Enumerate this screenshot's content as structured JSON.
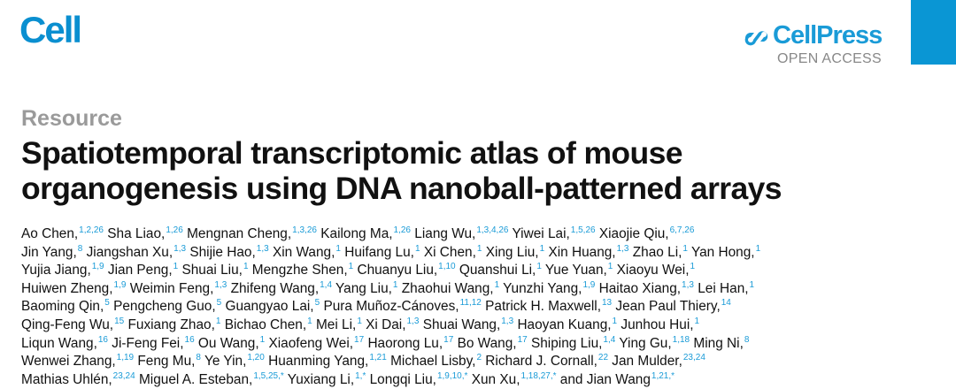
{
  "journal": "Cell",
  "publisher": {
    "name": "CellPress",
    "access": "OPEN ACCESS"
  },
  "colors": {
    "brand": "#1a9bd7",
    "block": "#0a96d4",
    "section": "#9a9a9a"
  },
  "article_type": "Resource",
  "title_lines": [
    "Spatiotemporal transcriptomic atlas of mouse",
    "organogenesis using DNA nanoball-patterned arrays"
  ],
  "author_lines": [
    [
      {
        "name": "Ao Chen,",
        "sup": "1,2,26"
      },
      {
        "name": "Sha Liao,",
        "sup": "1,26"
      },
      {
        "name": "Mengnan Cheng,",
        "sup": "1,3,26"
      },
      {
        "name": "Kailong Ma,",
        "sup": "1,26"
      },
      {
        "name": "Liang Wu,",
        "sup": "1,3,4,26"
      },
      {
        "name": "Yiwei Lai,",
        "sup": "1,5,26"
      },
      {
        "name": "Xiaojie Qiu,",
        "sup": "6,7,26"
      }
    ],
    [
      {
        "name": "Jin Yang,",
        "sup": "8"
      },
      {
        "name": "Jiangshan Xu,",
        "sup": "1,3"
      },
      {
        "name": "Shijie Hao,",
        "sup": "1,3"
      },
      {
        "name": "Xin Wang,",
        "sup": "1"
      },
      {
        "name": "Huifang Lu,",
        "sup": "1"
      },
      {
        "name": "Xi Chen,",
        "sup": "1"
      },
      {
        "name": "Xing Liu,",
        "sup": "1"
      },
      {
        "name": "Xin Huang,",
        "sup": "1,3"
      },
      {
        "name": "Zhao Li,",
        "sup": "1"
      },
      {
        "name": "Yan Hong,",
        "sup": "1"
      }
    ],
    [
      {
        "name": "Yujia Jiang,",
        "sup": "1,9"
      },
      {
        "name": "Jian Peng,",
        "sup": "1"
      },
      {
        "name": "Shuai Liu,",
        "sup": "1"
      },
      {
        "name": "Mengzhe Shen,",
        "sup": "1"
      },
      {
        "name": "Chuanyu Liu,",
        "sup": "1,10"
      },
      {
        "name": "Quanshui Li,",
        "sup": "1"
      },
      {
        "name": "Yue Yuan,",
        "sup": "1"
      },
      {
        "name": "Xiaoyu Wei,",
        "sup": "1"
      }
    ],
    [
      {
        "name": "Huiwen Zheng,",
        "sup": "1,9"
      },
      {
        "name": "Weimin Feng,",
        "sup": "1,3"
      },
      {
        "name": "Zhifeng Wang,",
        "sup": "1,4"
      },
      {
        "name": "Yang Liu,",
        "sup": "1"
      },
      {
        "name": "Zhaohui Wang,",
        "sup": "1"
      },
      {
        "name": "Yunzhi Yang,",
        "sup": "1,9"
      },
      {
        "name": "Haitao Xiang,",
        "sup": "1,3"
      },
      {
        "name": "Lei Han,",
        "sup": "1"
      }
    ],
    [
      {
        "name": "Baoming Qin,",
        "sup": "5"
      },
      {
        "name": "Pengcheng Guo,",
        "sup": "5"
      },
      {
        "name": "Guangyao Lai,",
        "sup": "5"
      },
      {
        "name": "Pura Muñoz-Cánoves,",
        "sup": "11,12"
      },
      {
        "name": "Patrick H. Maxwell,",
        "sup": "13"
      },
      {
        "name": "Jean Paul Thiery,",
        "sup": "14"
      }
    ],
    [
      {
        "name": "Qing-Feng Wu,",
        "sup": "15"
      },
      {
        "name": "Fuxiang Zhao,",
        "sup": "1"
      },
      {
        "name": "Bichao Chen,",
        "sup": "1"
      },
      {
        "name": "Mei Li,",
        "sup": "1"
      },
      {
        "name": "Xi Dai,",
        "sup": "1,3"
      },
      {
        "name": "Shuai Wang,",
        "sup": "1,3"
      },
      {
        "name": "Haoyan Kuang,",
        "sup": "1"
      },
      {
        "name": "Junhou Hui,",
        "sup": "1"
      }
    ],
    [
      {
        "name": "Liqun Wang,",
        "sup": "16"
      },
      {
        "name": "Ji-Feng Fei,",
        "sup": "16"
      },
      {
        "name": "Ou Wang,",
        "sup": "1"
      },
      {
        "name": "Xiaofeng Wei,",
        "sup": "17"
      },
      {
        "name": "Haorong Lu,",
        "sup": "17"
      },
      {
        "name": "Bo Wang,",
        "sup": "17"
      },
      {
        "name": "Shiping Liu,",
        "sup": "1,4"
      },
      {
        "name": "Ying Gu,",
        "sup": "1,18"
      },
      {
        "name": "Ming Ni,",
        "sup": "8"
      }
    ],
    [
      {
        "name": "Wenwei Zhang,",
        "sup": "1,19"
      },
      {
        "name": "Feng Mu,",
        "sup": "8"
      },
      {
        "name": "Ye Yin,",
        "sup": "1,20"
      },
      {
        "name": "Huanming Yang,",
        "sup": "1,21"
      },
      {
        "name": "Michael Lisby,",
        "sup": "2"
      },
      {
        "name": "Richard J. Cornall,",
        "sup": "22"
      },
      {
        "name": "Jan Mulder,",
        "sup": "23,24"
      }
    ],
    [
      {
        "name": "Mathias Uhlén,",
        "sup": "23,24"
      },
      {
        "name": "Miguel A. Esteban,",
        "sup": "1,5,25,*"
      },
      {
        "name": "Yuxiang Li,",
        "sup": "1,*"
      },
      {
        "name": "Longqi Liu,",
        "sup": "1,9,10,*"
      },
      {
        "name": "Xun Xu,",
        "sup": "1,18,27,*"
      },
      {
        "name": "and Jian Wang",
        "sup": "1,21,*"
      }
    ]
  ]
}
